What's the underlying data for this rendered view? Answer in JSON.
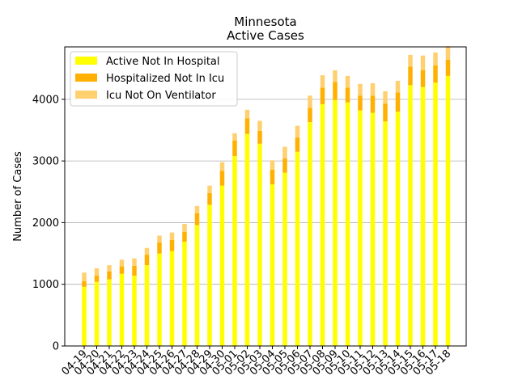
{
  "chart_data": {
    "type": "bar",
    "stacked": true,
    "title": "Minnesota",
    "subtitle": "Active Cases",
    "xlabel": "",
    "ylabel": "Number of Cases",
    "ylim": [
      0,
      4850
    ],
    "yticks": [
      0,
      1000,
      2000,
      3000,
      4000
    ],
    "grid": "y",
    "legend_position": "top-left",
    "categories": [
      "04-19",
      "04-20",
      "04-21",
      "04-22",
      "04-23",
      "04-24",
      "04-25",
      "04-26",
      "04-27",
      "04-28",
      "04-29",
      "04-30",
      "05-01",
      "05-02",
      "05-03",
      "05-04",
      "05-05",
      "05-06",
      "05-07",
      "05-08",
      "05-09",
      "05-10",
      "05-11",
      "05-12",
      "05-13",
      "05-14",
      "05-15",
      "05-16",
      "05-17",
      "05-18"
    ],
    "series": [
      {
        "name": "Active Not In Hospital",
        "color": "#ffff00",
        "values": [
          960,
          1040,
          1080,
          1170,
          1140,
          1310,
          1500,
          1540,
          1690,
          1960,
          2290,
          2600,
          3080,
          3440,
          3280,
          2620,
          2810,
          3150,
          3630,
          3920,
          3990,
          3950,
          3820,
          3780,
          3640,
          3800,
          4230,
          4200,
          4270,
          4380
        ]
      },
      {
        "name": "Hospitalized Not In Icu",
        "color": "#ffb000",
        "values": [
          90,
          100,
          130,
          120,
          160,
          170,
          180,
          180,
          160,
          190,
          190,
          240,
          250,
          250,
          210,
          240,
          230,
          230,
          230,
          270,
          290,
          240,
          240,
          280,
          290,
          310,
          300,
          270,
          280,
          260
        ]
      },
      {
        "name": "Icu Not On Ventilator",
        "color": "#ffd070",
        "values": [
          140,
          120,
          100,
          110,
          120,
          110,
          110,
          120,
          130,
          120,
          120,
          140,
          120,
          140,
          160,
          150,
          190,
          190,
          200,
          200,
          190,
          190,
          190,
          200,
          200,
          190,
          190,
          240,
          210,
          220
        ]
      }
    ]
  }
}
